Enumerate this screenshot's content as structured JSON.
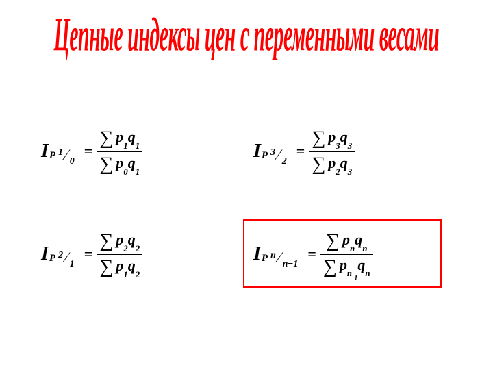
{
  "title": "Цепные индексы цен с переменными весами",
  "colors": {
    "title_color": "#ff0000",
    "text_color": "#000000",
    "background": "#ffffff",
    "box_border": "#ff0000"
  },
  "typography": {
    "title_fontsize": 38,
    "formula_fontsize": 24,
    "font_family": "Times New Roman",
    "title_style": "bold italic condensed"
  },
  "formulas": {
    "f1": {
      "I": "I",
      "P": "P",
      "idx_num": "1",
      "idx_den": "0",
      "eq": "=",
      "num_sigma": "∑",
      "num_p": "p",
      "num_p_sub": "1",
      "num_q": "q",
      "num_q_sub": "1",
      "den_sigma": "∑",
      "den_p": "p",
      "den_p_sub": "0",
      "den_q": "q",
      "den_q_sub": "1"
    },
    "f2": {
      "I": "I",
      "P": "P",
      "idx_num": "3",
      "idx_den": "2",
      "eq": "=",
      "num_sigma": "∑",
      "num_p": "p",
      "num_p_sub": "3",
      "num_q": "q",
      "num_q_sub": "3",
      "den_sigma": "∑",
      "den_p": "p",
      "den_p_sub": "2",
      "den_q": "q",
      "den_q_sub": "3"
    },
    "f3": {
      "I": "I",
      "P": "P",
      "idx_num": "2",
      "idx_den": "1",
      "eq": "=",
      "num_sigma": "∑",
      "num_p": "p",
      "num_p_sub": "2",
      "num_q": "q",
      "num_q_sub": "2",
      "den_sigma": "∑",
      "den_p": "p",
      "den_p_sub": "1",
      "den_q": "q",
      "den_q_sub": "2"
    },
    "f4": {
      "I": "I",
      "P": "P",
      "idx_num": "n",
      "idx_den_n": "n",
      "idx_den_minus": "−",
      "idx_den_1": "1",
      "eq": "=",
      "num_sigma": "∑",
      "num_p": "p",
      "num_p_sub": "n",
      "num_q": "q",
      "num_q_sub": "n",
      "den_sigma": "∑",
      "den_p": "p",
      "den_p_sub_n": "n",
      "den_p_sub_sp": " ",
      "den_p_sub_1": "1",
      "den_q": "q",
      "den_q_sub": "n"
    }
  }
}
